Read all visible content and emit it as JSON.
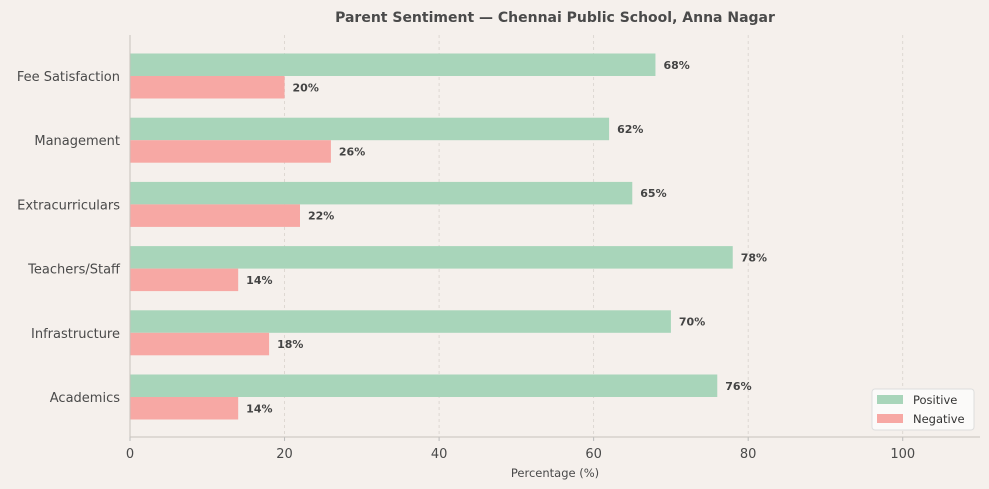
{
  "chart_data": {
    "type": "bar",
    "orientation": "horizontal",
    "title": "Parent Sentiment — Chennai Public School, Anna Nagar",
    "xlabel": "Percentage (%)",
    "ylabel": "",
    "xlim": [
      0,
      110
    ],
    "xticks": [
      0,
      20,
      40,
      60,
      80,
      100
    ],
    "grid": "x-dashed",
    "legend_placement": "bottom-right",
    "categories": [
      "Fee Satisfaction",
      "Management",
      "Extracurriculars",
      "Teachers/Staff",
      "Infrastructure",
      "Academics"
    ],
    "series": [
      {
        "name": "Positive",
        "color": "#a8d5ba",
        "values": [
          68,
          62,
          65,
          78,
          70,
          76
        ]
      },
      {
        "name": "Negative",
        "color": "#f7a8a4",
        "values": [
          20,
          26,
          22,
          14,
          18,
          14
        ]
      }
    ],
    "value_label_suffix": "%"
  }
}
